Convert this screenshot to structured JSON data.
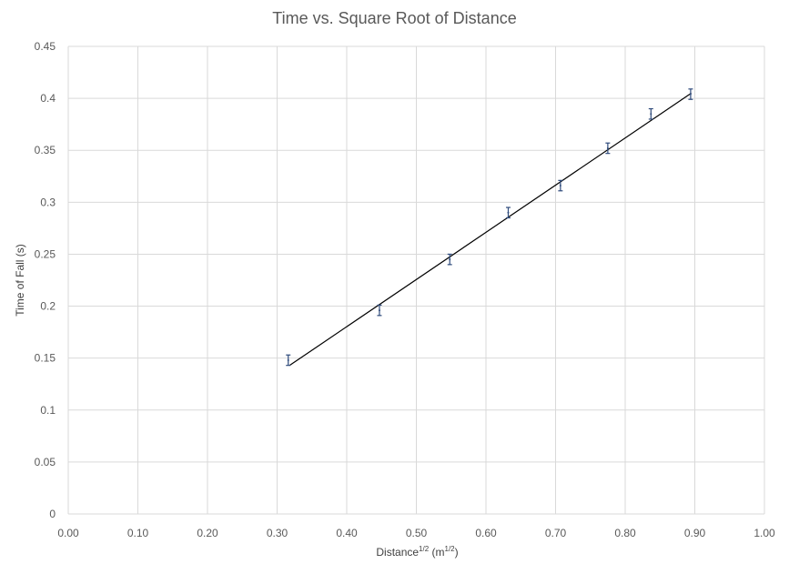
{
  "chart_data": {
    "type": "scatter",
    "title": "Time vs. Square Root of Distance",
    "xlabel": {
      "main": "Distance",
      "main_sup": "1/2",
      "unit_open": " (m",
      "unit_sup": "1/2",
      "unit_close": ")"
    },
    "ylabel": "Time of Fall (s)",
    "xlim": [
      0,
      1.0
    ],
    "ylim": [
      0,
      0.45
    ],
    "x_ticks": [
      "0.00",
      "0.10",
      "0.20",
      "0.30",
      "0.40",
      "0.50",
      "0.60",
      "0.70",
      "0.80",
      "0.90",
      "1.00"
    ],
    "y_ticks": [
      "0",
      "0.05",
      "0.1",
      "0.15",
      "0.2",
      "0.25",
      "0.3",
      "0.35",
      "0.4",
      "0.45"
    ],
    "grid": true,
    "series": [
      {
        "x": [
          0.316,
          0.447,
          0.548,
          0.632,
          0.707,
          0.775,
          0.837,
          0.894
        ],
        "y": [
          0.148,
          0.196,
          0.245,
          0.29,
          0.316,
          0.352,
          0.385,
          0.404
        ],
        "error": 0.005,
        "color": "#2f4b7c"
      }
    ],
    "trendline": {
      "x": [
        0.318,
        0.895
      ],
      "y": [
        0.143,
        0.405
      ],
      "color": "#000000"
    }
  }
}
